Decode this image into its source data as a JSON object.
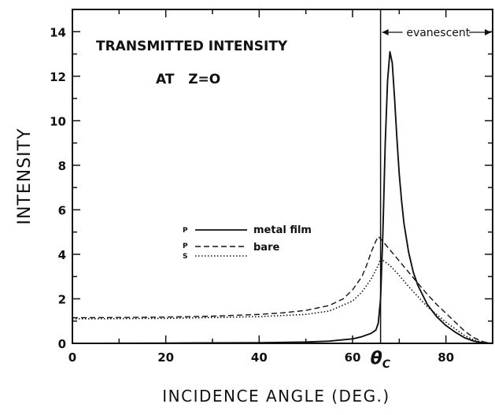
{
  "chart_data": {
    "type": "line",
    "xlabel": "INCIDENCE ANGLE (DEG.)",
    "ylabel": "INTENSITY",
    "xlim": [
      0,
      90
    ],
    "ylim": [
      0,
      15
    ],
    "xticks": [
      0,
      20,
      40,
      60,
      80
    ],
    "yticks": [
      0,
      2,
      4,
      6,
      8,
      10,
      12,
      14
    ],
    "grid": false,
    "legend_position": "middle-left",
    "annotations": {
      "title_line1": "TRANSMITTED INTENSITY",
      "title_line2": "AT   Z=O",
      "critical_angle_label": "θ",
      "critical_angle_sub": "C",
      "critical_angle_value": 66,
      "region_label": "evanescent"
    },
    "series": [
      {
        "name": "metal film",
        "polarization": "P",
        "style": "solid",
        "x": [
          0,
          20,
          40,
          50,
          55,
          60,
          62,
          64,
          65,
          65.5,
          66,
          66.5,
          67,
          67.5,
          68,
          68.5,
          69,
          69.5,
          70,
          70.5,
          71,
          72,
          73,
          74,
          76,
          78,
          80,
          82,
          84,
          86,
          88,
          90
        ],
        "y": [
          0,
          0.01,
          0.03,
          0.06,
          0.1,
          0.2,
          0.3,
          0.45,
          0.6,
          0.9,
          2.0,
          5.0,
          9.0,
          11.8,
          13.1,
          12.6,
          11.0,
          9.2,
          7.6,
          6.4,
          5.4,
          4.1,
          3.2,
          2.6,
          1.75,
          1.2,
          0.8,
          0.5,
          0.25,
          0.1,
          0.02,
          0
        ]
      },
      {
        "name": "bare",
        "polarization": "P",
        "style": "dashed",
        "x": [
          0,
          10,
          20,
          30,
          40,
          45,
          50,
          55,
          58,
          60,
          62,
          63,
          64,
          65,
          65.5,
          66,
          68,
          70,
          72,
          74,
          76,
          78,
          80,
          82,
          84,
          86,
          88,
          90
        ],
        "y": [
          1.15,
          1.16,
          1.18,
          1.22,
          1.3,
          1.37,
          1.48,
          1.7,
          2.0,
          2.4,
          3.0,
          3.5,
          4.1,
          4.6,
          4.8,
          4.7,
          4.2,
          3.7,
          3.2,
          2.7,
          2.2,
          1.75,
          1.35,
          0.95,
          0.55,
          0.25,
          0.07,
          0
        ]
      },
      {
        "name": "",
        "polarization": "S",
        "style": "dotted",
        "x": [
          0,
          20,
          40,
          50,
          55,
          60,
          62,
          64,
          65,
          65.5,
          66,
          68,
          70,
          72,
          74,
          76,
          78,
          80,
          82,
          84,
          86,
          88,
          90
        ],
        "y": [
          1.1,
          1.12,
          1.2,
          1.3,
          1.45,
          1.9,
          2.3,
          2.9,
          3.3,
          3.5,
          3.8,
          3.5,
          3.05,
          2.55,
          2.1,
          1.65,
          1.3,
          0.95,
          0.65,
          0.35,
          0.15,
          0.04,
          0
        ]
      }
    ]
  }
}
